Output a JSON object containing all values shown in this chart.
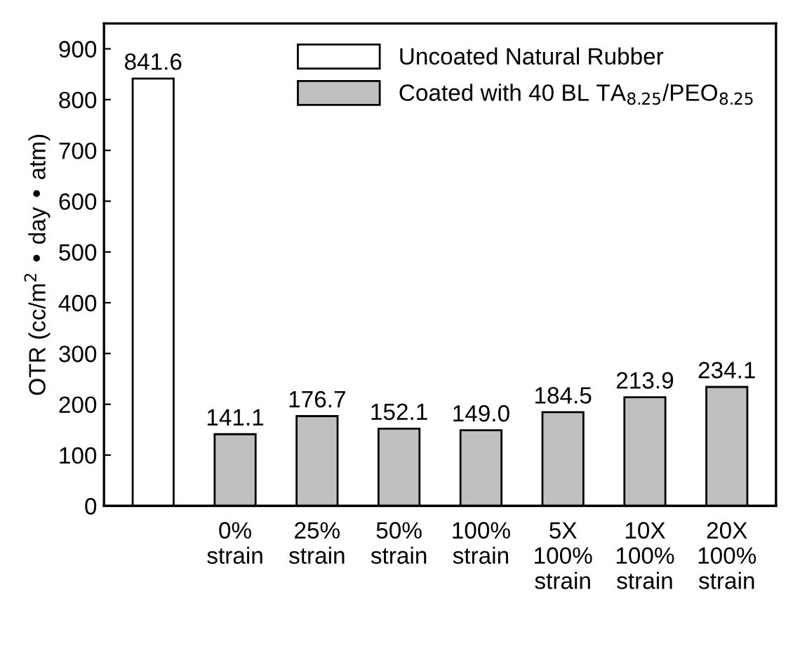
{
  "chart_data": {
    "type": "bar",
    "ylabel": "OTR (cc/m$^{2}$ • day • atm)",
    "categories": [
      null,
      "0%\nstrain",
      "25%\nstrain",
      "50%\nstrain",
      "100%\nstrain",
      "5X\n100%\nstrain",
      "10X\n100%\nstrain",
      "20X\n100%\nstrain"
    ],
    "series": [
      {
        "name": "Uncoated Natural Rubber",
        "color": "#ffffff",
        "values": [
          841.6,
          null,
          null,
          null,
          null,
          null,
          null,
          null
        ],
        "value_labels": [
          "841.6",
          null,
          null,
          null,
          null,
          null,
          null,
          null
        ]
      },
      {
        "name": "Coated with 40 BL TA$_{8.25}$/PEO$_{8.25}$",
        "color": "#c0c0c0",
        "values": [
          null,
          141.1,
          176.7,
          152.1,
          149.0,
          184.5,
          213.9,
          234.1
        ],
        "value_labels": [
          null,
          "141.1",
          "176.7",
          "152.1",
          "149.0",
          "184.5",
          "213.9",
          "234.1"
        ]
      }
    ],
    "ylim": [
      0,
      950
    ],
    "yticks": [
      0,
      100,
      200,
      300,
      400,
      500,
      600,
      700,
      800,
      900
    ],
    "legend": "top right",
    "grid": false
  }
}
